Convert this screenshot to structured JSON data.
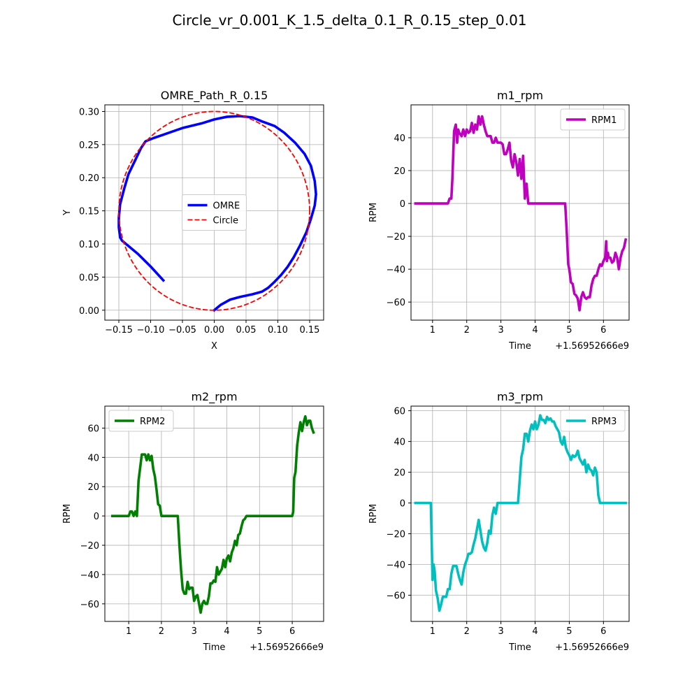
{
  "suptitle": "Circle_vr_0.001_K_1.5_delta_0.1_R_0.15_step_0.01",
  "chart_data": [
    {
      "type": "line",
      "title": "OMRE_Path_R_0.15",
      "xlabel": "X",
      "ylabel": "Y",
      "xlim": [
        -0.172,
        0.172
      ],
      "ylim": [
        -0.015,
        0.31
      ],
      "xticks": [
        -0.15,
        -0.1,
        -0.05,
        0.0,
        0.05,
        0.1,
        0.15
      ],
      "xtick_labels": [
        "−0.15",
        "−0.10",
        "−0.05",
        "0.00",
        "0.05",
        "0.10",
        "0.15"
      ],
      "yticks": [
        0.0,
        0.05,
        0.1,
        0.15,
        0.2,
        0.25,
        0.3
      ],
      "ytick_labels": [
        "0.00",
        "0.05",
        "0.10",
        "0.15",
        "0.20",
        "0.25",
        "0.30"
      ],
      "offset_text": "",
      "grid": true,
      "legend_position": "center",
      "series": [
        {
          "name": "OMRE",
          "color": "#0000ff",
          "style": "solid",
          "x": [
            0.0,
            0.01,
            0.025,
            0.04,
            0.06,
            0.075,
            0.085,
            0.095,
            0.105,
            0.115,
            0.125,
            0.135,
            0.145,
            0.152,
            0.158,
            0.16,
            0.158,
            0.152,
            0.142,
            0.127,
            0.11,
            0.095,
            0.075,
            0.06,
            0.04,
            0.02,
            0.0,
            -0.02,
            -0.05,
            -0.08,
            -0.095,
            -0.108,
            -0.115,
            -0.125,
            -0.135,
            -0.142,
            -0.148,
            -0.15,
            -0.15,
            -0.148,
            -0.145,
            -0.12,
            -0.1,
            -0.08
          ],
          "y": [
            0.0,
            0.008,
            0.016,
            0.02,
            0.024,
            0.028,
            0.034,
            0.043,
            0.053,
            0.065,
            0.08,
            0.098,
            0.118,
            0.138,
            0.158,
            0.175,
            0.195,
            0.218,
            0.236,
            0.253,
            0.268,
            0.278,
            0.285,
            0.291,
            0.293,
            0.292,
            0.288,
            0.282,
            0.275,
            0.265,
            0.26,
            0.255,
            0.245,
            0.225,
            0.205,
            0.182,
            0.16,
            0.14,
            0.125,
            0.11,
            0.105,
            0.085,
            0.066,
            0.045
          ]
        },
        {
          "name": "Circle",
          "color": "#ff0000",
          "style": "dashed",
          "circle": {
            "cx": 0.0,
            "cy": 0.15,
            "r": 0.15
          }
        }
      ]
    },
    {
      "type": "line",
      "title": "m1_rpm",
      "xlabel": "Time",
      "ylabel": "RPM",
      "xlim": [
        0.37,
        6.75
      ],
      "ylim": [
        -71,
        60
      ],
      "xticks": [
        1,
        2,
        3,
        4,
        5,
        6
      ],
      "xtick_labels": [
        "1",
        "2",
        "3",
        "4",
        "5",
        "6"
      ],
      "yticks": [
        -60,
        -40,
        -20,
        0,
        20,
        40
      ],
      "ytick_labels": [
        "−60",
        "−40",
        "−20",
        "0",
        "20",
        "40"
      ],
      "offset_text": "+1.56952666e9",
      "grid": true,
      "legend_position": "upper right",
      "series": [
        {
          "name": "RPM1",
          "color": "#bf00bf",
          "style": "solid",
          "x": [
            0.5,
            1.0,
            1.45,
            1.5,
            1.55,
            1.58,
            1.63,
            1.68,
            1.72,
            1.75,
            1.78,
            1.85,
            1.9,
            1.95,
            2.0,
            2.05,
            2.1,
            2.15,
            2.2,
            2.25,
            2.3,
            2.35,
            2.4,
            2.45,
            2.5,
            2.55,
            2.6,
            2.65,
            2.7,
            2.75,
            2.8,
            2.85,
            2.9,
            2.95,
            3.0,
            3.05,
            3.1,
            3.15,
            3.2,
            3.25,
            3.3,
            3.35,
            3.4,
            3.45,
            3.5,
            3.55,
            3.6,
            3.65,
            3.7,
            3.75,
            3.8,
            3.85,
            3.9,
            4.0,
            4.5,
            4.88,
            4.92,
            4.97,
            5.0,
            5.05,
            5.1,
            5.15,
            5.2,
            5.25,
            5.3,
            5.35,
            5.4,
            5.45,
            5.5,
            5.55,
            5.6,
            5.65,
            5.7,
            5.75,
            5.8,
            5.85,
            5.9,
            5.95,
            6.0,
            6.05,
            6.08,
            6.1,
            6.13,
            6.15,
            6.2,
            6.25,
            6.3,
            6.35,
            6.4,
            6.45,
            6.5,
            6.55,
            6.6,
            6.65
          ],
          "y": [
            0,
            0,
            0,
            3,
            3,
            15,
            44,
            48,
            37,
            45,
            43,
            41,
            45,
            41,
            45,
            43,
            44,
            49,
            43,
            48,
            45,
            53,
            48,
            53,
            48,
            44,
            41,
            41,
            41,
            37,
            37,
            40,
            37,
            37,
            37,
            36,
            30,
            30,
            33,
            37,
            26,
            22,
            30,
            25,
            17,
            27,
            15,
            29,
            3,
            12,
            0,
            0,
            0,
            0,
            0,
            0,
            -15,
            -37,
            -40,
            -48,
            -49,
            -55,
            -56,
            -58,
            -65,
            -57,
            -54,
            -57,
            -58,
            -57,
            -57,
            -50,
            -46,
            -44,
            -44,
            -40,
            -37,
            -38,
            -35,
            -33,
            -23,
            -35,
            -30,
            -33,
            -33,
            -36,
            -35,
            -30,
            -33,
            -40,
            -33,
            -29,
            -27,
            -22
          ]
        }
      ]
    },
    {
      "type": "line",
      "title": "m2_rpm",
      "xlabel": "Time",
      "ylabel": "RPM",
      "xlim": [
        0.27,
        6.96
      ],
      "ylim": [
        -72,
        75
      ],
      "xticks": [
        1,
        2,
        3,
        4,
        5,
        6
      ],
      "xtick_labels": [
        "1",
        "2",
        "3",
        "4",
        "5",
        "6"
      ],
      "yticks": [
        -60,
        -40,
        -20,
        0,
        20,
        40,
        60
      ],
      "ytick_labels": [
        "−60",
        "−40",
        "−20",
        "0",
        "20",
        "40",
        "60"
      ],
      "offset_text": "+1.56952666e9",
      "grid": true,
      "legend_position": "upper left",
      "series": [
        {
          "name": "RPM2",
          "color": "#008000",
          "style": "solid",
          "x": [
            0.5,
            1.0,
            1.05,
            1.1,
            1.15,
            1.2,
            1.25,
            1.3,
            1.35,
            1.4,
            1.45,
            1.5,
            1.55,
            1.6,
            1.65,
            1.7,
            1.75,
            1.8,
            1.85,
            1.9,
            1.95,
            2.0,
            2.5,
            2.55,
            2.6,
            2.65,
            2.7,
            2.75,
            2.8,
            2.85,
            2.9,
            2.95,
            3.0,
            3.05,
            3.1,
            3.15,
            3.2,
            3.25,
            3.3,
            3.35,
            3.4,
            3.45,
            3.5,
            3.55,
            3.6,
            3.65,
            3.7,
            3.75,
            3.8,
            3.85,
            3.9,
            3.95,
            4.0,
            4.05,
            4.1,
            4.15,
            4.2,
            4.25,
            4.3,
            4.35,
            4.4,
            4.45,
            4.5,
            4.55,
            4.6,
            4.65,
            4.7,
            4.75,
            4.8,
            5.0,
            5.5,
            6.0,
            6.03,
            6.06,
            6.1,
            6.15,
            6.2,
            6.25,
            6.3,
            6.35,
            6.4,
            6.45,
            6.5,
            6.55,
            6.6,
            6.65
          ],
          "y": [
            0,
            0,
            3,
            3,
            0,
            3,
            0,
            24,
            33,
            42,
            42,
            42,
            38,
            42,
            38,
            41,
            32,
            27,
            18,
            8,
            7,
            0,
            0,
            -20,
            -37,
            -50,
            -53,
            -53,
            -45,
            -50,
            -49,
            -49,
            -58,
            -55,
            -54,
            -60,
            -66,
            -60,
            -58,
            -60,
            -60,
            -55,
            -46,
            -46,
            -44,
            -45,
            -35,
            -40,
            -38,
            -36,
            -30,
            -35,
            -29,
            -27,
            -31,
            -25,
            -22,
            -17,
            -20,
            -13,
            -12,
            -7,
            -3,
            -2,
            0,
            0,
            0,
            0,
            0,
            0,
            0,
            0,
            3,
            26,
            30,
            48,
            57,
            64,
            58,
            64,
            68,
            62,
            65,
            65,
            60,
            57
          ]
        }
      ]
    },
    {
      "type": "line",
      "title": "m3_rpm",
      "xlabel": "Time",
      "ylabel": "RPM",
      "xlim": [
        0.37,
        6.75
      ],
      "ylim": [
        -77,
        63
      ],
      "xticks": [
        1,
        2,
        3,
        4,
        5,
        6
      ],
      "xtick_labels": [
        "1",
        "2",
        "3",
        "4",
        "5",
        "6"
      ],
      "yticks": [
        -60,
        -40,
        -20,
        0,
        20,
        40,
        60
      ],
      "ytick_labels": [
        "−60",
        "−40",
        "−20",
        "0",
        "20",
        "40",
        "60"
      ],
      "offset_text": "+1.56952666e9",
      "grid": true,
      "legend_position": "upper right",
      "series": [
        {
          "name": "RPM3",
          "color": "#00bfbf",
          "style": "solid",
          "x": [
            0.5,
            0.95,
            1.0,
            1.03,
            1.06,
            1.1,
            1.15,
            1.2,
            1.25,
            1.3,
            1.35,
            1.4,
            1.45,
            1.5,
            1.55,
            1.6,
            1.65,
            1.7,
            1.75,
            1.8,
            1.85,
            1.9,
            1.95,
            2.0,
            2.05,
            2.1,
            2.15,
            2.2,
            2.25,
            2.3,
            2.35,
            2.4,
            2.45,
            2.5,
            2.55,
            2.6,
            2.65,
            2.7,
            2.75,
            2.8,
            2.85,
            2.9,
            2.95,
            3.0,
            3.05,
            3.1,
            3.15,
            3.2,
            3.5,
            3.6,
            3.65,
            3.7,
            3.75,
            3.8,
            3.85,
            3.9,
            3.95,
            4.0,
            4.05,
            4.1,
            4.15,
            4.2,
            4.25,
            4.3,
            4.35,
            4.4,
            4.45,
            4.5,
            4.55,
            4.6,
            4.65,
            4.7,
            4.75,
            4.8,
            4.85,
            4.9,
            4.95,
            5.0,
            5.05,
            5.1,
            5.15,
            5.2,
            5.25,
            5.3,
            5.35,
            5.4,
            5.45,
            5.5,
            5.55,
            5.6,
            5.65,
            5.7,
            5.75,
            5.8,
            5.85,
            5.9,
            6.0,
            6.65
          ],
          "y": [
            0,
            0,
            -50,
            -40,
            -44,
            -57,
            -62,
            -70,
            -66,
            -61,
            -61,
            -61,
            -56,
            -56,
            -46,
            -41,
            -41,
            -41,
            -46,
            -50,
            -53,
            -45,
            -40,
            -37,
            -33,
            -33,
            -32,
            -27,
            -23,
            -17,
            -11,
            -18,
            -25,
            -29,
            -31,
            -26,
            -18,
            -20,
            -8,
            -3,
            -7,
            0,
            0,
            0,
            0,
            0,
            0,
            0,
            0,
            30,
            35,
            45,
            45,
            40,
            47,
            51,
            48,
            53,
            48,
            51,
            57,
            54,
            54,
            52,
            56,
            54,
            55,
            53,
            53,
            50,
            48,
            46,
            40,
            38,
            43,
            36,
            33,
            31,
            28,
            31,
            30,
            31,
            34,
            29,
            27,
            25,
            28,
            20,
            25,
            22,
            21,
            18,
            23,
            20,
            5,
            0,
            0,
            0
          ]
        }
      ]
    }
  ]
}
